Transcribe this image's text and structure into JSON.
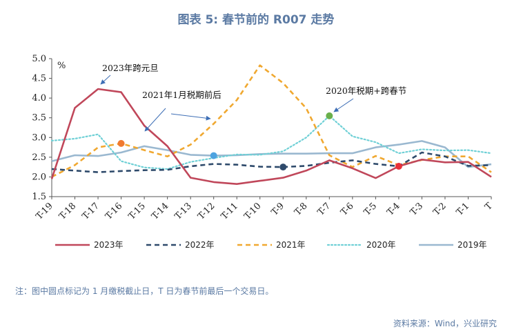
{
  "title": "图表 5:  春节前的 R007 走势",
  "note": "注：图中圆点标记为 1 月缴税截止日，T 日为春节前最后一个交易日。",
  "source": "资料来源：Wind，兴业研究",
  "chart_data": {
    "type": "line",
    "ylabel": "%",
    "ylim": [
      1.5,
      5.0
    ],
    "yticks": [
      "1.5",
      "2.0",
      "2.5",
      "3.0",
      "3.5",
      "4.0",
      "4.5",
      "5.0"
    ],
    "categories": [
      "T-19",
      "T-18",
      "T-17",
      "T-16",
      "T-15",
      "T-14",
      "T-13",
      "T-12",
      "T-11",
      "T-10",
      "T-9",
      "T-8",
      "T-7",
      "T-6",
      "T-5",
      "T-4",
      "T-3",
      "T-2",
      "T-1",
      "T"
    ],
    "series": [
      {
        "name": "2023年",
        "color": "#c0475a",
        "dash": "solid",
        "marker_index": 15,
        "values": [
          1.95,
          3.75,
          4.23,
          4.15,
          3.3,
          2.78,
          1.98,
          1.87,
          1.82,
          1.9,
          1.98,
          2.16,
          2.42,
          2.22,
          1.97,
          2.27,
          2.44,
          2.37,
          2.38,
          2.0
        ]
      },
      {
        "name": "2022年",
        "color": "#2e4a6b",
        "dash": "dashed",
        "marker_index": 10,
        "values": [
          2.2,
          2.16,
          2.12,
          2.15,
          2.17,
          2.18,
          2.27,
          2.33,
          2.31,
          2.26,
          2.25,
          2.28,
          2.36,
          2.42,
          2.33,
          2.27,
          2.62,
          2.52,
          2.28,
          2.3
        ]
      },
      {
        "name": "2021年",
        "color": "#f0a830",
        "dash": "dashed",
        "marker_index": 3,
        "values": [
          2.0,
          2.3,
          2.75,
          2.85,
          2.68,
          2.52,
          2.82,
          3.35,
          3.95,
          4.83,
          4.38,
          3.74,
          2.55,
          2.25,
          2.53,
          2.3,
          2.43,
          2.52,
          2.52,
          2.12
        ]
      },
      {
        "name": "2020年",
        "color": "#6fd0d6",
        "dash": "dotted",
        "marker_index": 12,
        "values": [
          2.92,
          2.97,
          3.08,
          2.4,
          2.24,
          2.2,
          2.38,
          2.48,
          2.57,
          2.56,
          2.65,
          3.0,
          3.55,
          3.03,
          2.88,
          2.6,
          2.7,
          2.67,
          2.68,
          2.6
        ]
      },
      {
        "name": "2019年",
        "color": "#9ab8d0",
        "dash": "solid",
        "marker_index": 7,
        "values": [
          2.4,
          2.55,
          2.53,
          2.62,
          2.78,
          2.68,
          2.56,
          2.54,
          2.55,
          2.58,
          2.59,
          2.59,
          2.6,
          2.6,
          2.75,
          2.82,
          2.91,
          2.75,
          2.25,
          2.32
        ]
      }
    ],
    "annotations": [
      {
        "text": "2023年跨元旦",
        "target_series": 0,
        "target_index": 2
      },
      {
        "text": "2021年1月税期前后",
        "target_series": 2,
        "target_index": 3
      },
      {
        "text": "2020年税期+跨春节",
        "target_series": 3,
        "target_index": 12
      }
    ],
    "legend_position": "bottom"
  }
}
